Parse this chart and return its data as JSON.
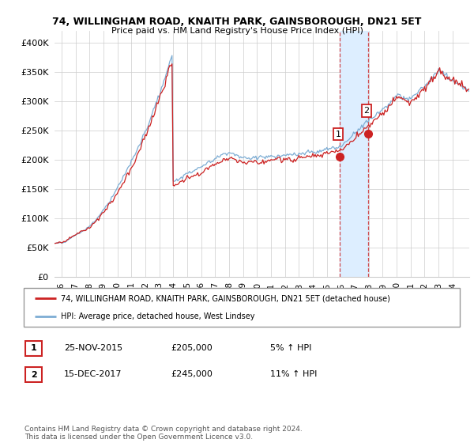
{
  "title1": "74, WILLINGHAM ROAD, KNAITH PARK, GAINSBOROUGH, DN21 5ET",
  "title2": "Price paid vs. HM Land Registry's House Price Index (HPI)",
  "ylabel_ticks": [
    "£0",
    "£50K",
    "£100K",
    "£150K",
    "£200K",
    "£250K",
    "£300K",
    "£350K",
    "£400K"
  ],
  "ytick_values": [
    0,
    50000,
    100000,
    150000,
    200000,
    250000,
    300000,
    350000,
    400000
  ],
  "ylim": [
    0,
    420000
  ],
  "xlim_start": 1995.5,
  "xlim_end": 2025.2,
  "hpi_color": "#7dadd4",
  "price_color": "#cc2222",
  "marker_color": "#cc2222",
  "shade_color": "#ddeeff",
  "transaction1_date": 2015.9,
  "transaction1_price": 205000,
  "transaction2_date": 2017.95,
  "transaction2_price": 245000,
  "legend_line1": "74, WILLINGHAM ROAD, KNAITH PARK, GAINSBOROUGH, DN21 5ET (detached house)",
  "legend_line2": "HPI: Average price, detached house, West Lindsey",
  "table_row1": [
    "1",
    "25-NOV-2015",
    "£205,000",
    "5% ↑ HPI"
  ],
  "table_row2": [
    "2",
    "15-DEC-2017",
    "£245,000",
    "11% ↑ HPI"
  ],
  "footer": "Contains HM Land Registry data © Crown copyright and database right 2024.\nThis data is licensed under the Open Government Licence v3.0.",
  "xtick_years": [
    1996,
    1997,
    1998,
    1999,
    2000,
    2001,
    2002,
    2003,
    2004,
    2005,
    2006,
    2007,
    2008,
    2009,
    2010,
    2011,
    2012,
    2013,
    2014,
    2015,
    2016,
    2017,
    2018,
    2019,
    2020,
    2021,
    2022,
    2023,
    2024
  ]
}
